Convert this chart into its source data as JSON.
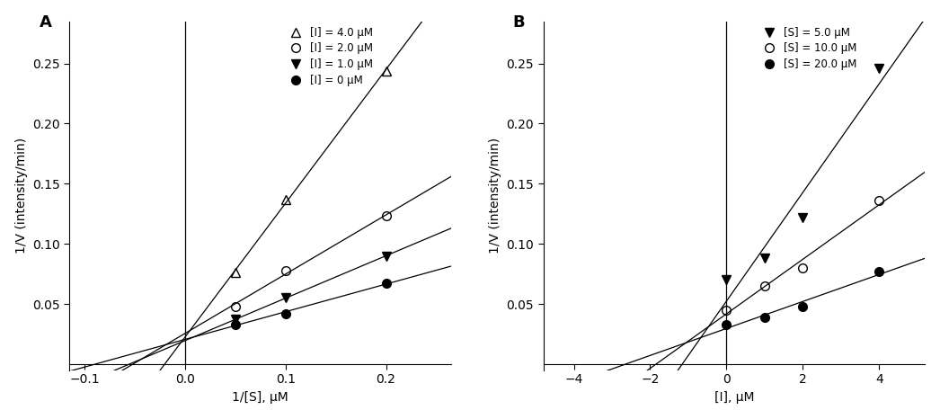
{
  "panel_A": {
    "label": "A",
    "xlabel": "1/[S], μM",
    "ylabel": "1/V (intensity/min)",
    "xlim": [
      -0.115,
      0.265
    ],
    "ylim": [
      -0.005,
      0.285
    ],
    "xticks": [
      -0.1,
      0.0,
      0.1,
      0.2
    ],
    "yticks": [
      0.05,
      0.1,
      0.15,
      0.2,
      0.25
    ],
    "series": [
      {
        "label": "[I] = 4.0 μM",
        "marker": "^",
        "fillstyle": "none",
        "color": "black",
        "x": [
          0.05,
          0.1,
          0.2
        ],
        "y": [
          0.076,
          0.137,
          0.244
        ]
      },
      {
        "label": "[I] = 2.0 μM",
        "marker": "o",
        "fillstyle": "none",
        "color": "black",
        "x": [
          0.05,
          0.1,
          0.2
        ],
        "y": [
          0.048,
          0.078,
          0.123
        ]
      },
      {
        "label": "[I] = 1.0 μM",
        "marker": "v",
        "fillstyle": "full",
        "color": "black",
        "x": [
          0.05,
          0.1,
          0.2
        ],
        "y": [
          0.037,
          0.055,
          0.09
        ]
      },
      {
        "label": "[I] = 0 μM",
        "marker": "o",
        "fillstyle": "full",
        "color": "black",
        "x": [
          0.05,
          0.1,
          0.2
        ],
        "y": [
          0.033,
          0.042,
          0.067
        ]
      }
    ]
  },
  "panel_B": {
    "label": "B",
    "xlabel": "[I], μM",
    "ylabel": "1/V (intensity/min)",
    "xlim": [
      -4.8,
      5.2
    ],
    "ylim": [
      -0.005,
      0.285
    ],
    "xticks": [
      -4,
      -2,
      0,
      2,
      4
    ],
    "yticks": [
      0.05,
      0.1,
      0.15,
      0.2,
      0.25
    ],
    "series": [
      {
        "label": "[S] = 5.0 μM",
        "marker": "v",
        "fillstyle": "full",
        "color": "black",
        "x": [
          0,
          1,
          2,
          4
        ],
        "y": [
          0.07,
          0.088,
          0.122,
          0.246
        ]
      },
      {
        "label": "[S] = 10.0 μM",
        "marker": "o",
        "fillstyle": "none",
        "color": "black",
        "x": [
          0,
          1,
          2,
          4
        ],
        "y": [
          0.045,
          0.065,
          0.08,
          0.136
        ]
      },
      {
        "label": "[S] = 20.0 μM",
        "marker": "o",
        "fillstyle": "full",
        "color": "black",
        "x": [
          0,
          1,
          2,
          4
        ],
        "y": [
          0.033,
          0.039,
          0.048,
          0.077
        ]
      }
    ]
  }
}
